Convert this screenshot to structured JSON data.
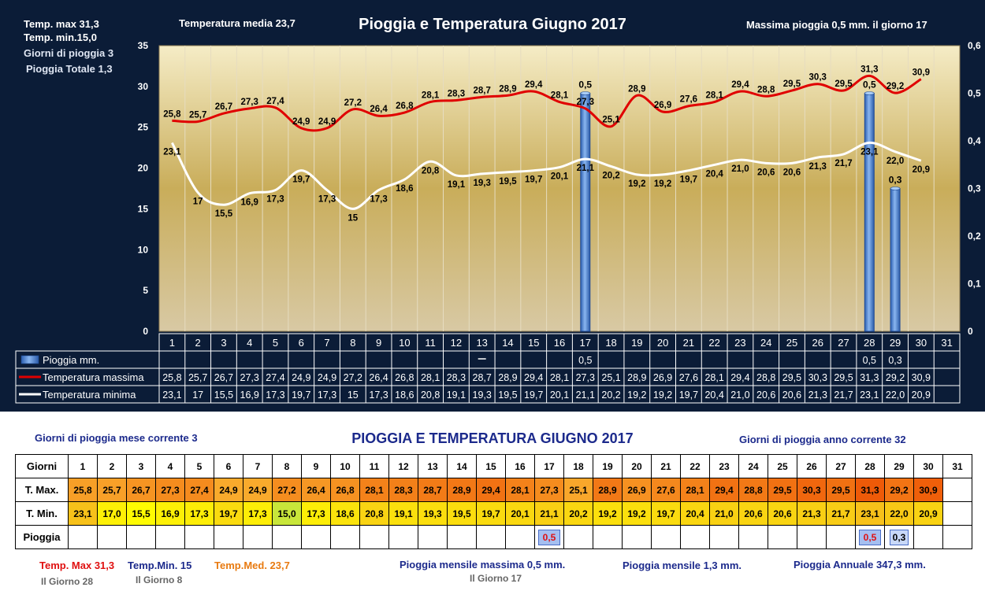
{
  "chart_data": {
    "type": "line",
    "title": "Pioggia e Temperatura Giugno 2017",
    "categories": [
      "1",
      "2",
      "3",
      "4",
      "5",
      "6",
      "7",
      "8",
      "9",
      "10",
      "11",
      "12",
      "13",
      "14",
      "15",
      "16",
      "17",
      "18",
      "19",
      "20",
      "21",
      "22",
      "23",
      "24",
      "25",
      "26",
      "27",
      "28",
      "29",
      "30",
      "31"
    ],
    "ylim": [
      0,
      35
    ],
    "yticks": [
      "0",
      "5",
      "10",
      "15",
      "20",
      "25",
      "30",
      "35"
    ],
    "y2lim": [
      0,
      0.6
    ],
    "y2ticks": [
      "0",
      "0,1",
      "0,2",
      "0,3",
      "0,4",
      "0,5",
      "0,6"
    ],
    "series": [
      {
        "name": "Pioggia mm.",
        "kind": "bar",
        "axis": "right",
        "color": "#4a86d4",
        "values": [
          null,
          null,
          null,
          null,
          null,
          null,
          null,
          null,
          null,
          null,
          null,
          null,
          null,
          null,
          null,
          null,
          0.5,
          null,
          null,
          null,
          null,
          null,
          null,
          null,
          null,
          null,
          null,
          0.5,
          0.3,
          null,
          null
        ],
        "labels": [
          "",
          "",
          "",
          "",
          "",
          "",
          "",
          "",
          "",
          "",
          "",
          "",
          "",
          "",
          "",
          "",
          "0,5",
          "",
          "",
          "",
          "",
          "",
          "",
          "",
          "",
          "",
          "",
          "0,5",
          "0,3",
          "",
          ""
        ]
      },
      {
        "name": "Temperatura massima",
        "kind": "line",
        "color": "#e00000",
        "values": [
          25.8,
          25.7,
          26.7,
          27.3,
          27.4,
          24.9,
          24.9,
          27.2,
          26.4,
          26.8,
          28.1,
          28.3,
          28.7,
          28.9,
          29.4,
          28.1,
          27.3,
          25.1,
          28.9,
          26.9,
          27.6,
          28.1,
          29.4,
          28.8,
          29.5,
          30.3,
          29.5,
          31.3,
          29.2,
          30.9,
          null
        ],
        "labels": [
          "25,8",
          "25,7",
          "26,7",
          "27,3",
          "27,4",
          "24,9",
          "24,9",
          "27,2",
          "26,4",
          "26,8",
          "28,1",
          "28,3",
          "28,7",
          "28,9",
          "29,4",
          "28,1",
          "27,3",
          "25,1",
          "28,9",
          "26,9",
          "27,6",
          "28,1",
          "29,4",
          "28,8",
          "29,5",
          "30,3",
          "29,5",
          "31,3",
          "29,2",
          "30,9",
          ""
        ]
      },
      {
        "name": "Temperatura minima",
        "kind": "line",
        "color": "#ffffff",
        "values": [
          23.1,
          17,
          15.5,
          16.9,
          17.3,
          19.7,
          17.3,
          15,
          17.3,
          18.6,
          20.8,
          19.1,
          19.3,
          19.5,
          19.7,
          20.1,
          21.1,
          20.2,
          19.2,
          19.2,
          19.7,
          20.4,
          21.0,
          20.6,
          20.6,
          21.3,
          21.7,
          23.1,
          22.0,
          20.9,
          null
        ],
        "labels": [
          "23,1",
          "17",
          "15,5",
          "16,9",
          "17,3",
          "19,7",
          "17,3",
          "15",
          "17,3",
          "18,6",
          "20,8",
          "19,1",
          "19,3",
          "19,5",
          "19,7",
          "20,1",
          "21,1",
          "20,2",
          "19,2",
          "19,2",
          "19,7",
          "20,4",
          "21,0",
          "20,6",
          "20,6",
          "21,3",
          "21,7",
          "23,1",
          "22,0",
          "20,9",
          ""
        ]
      }
    ]
  },
  "header": {
    "temp_max": "Temp. max  31,3",
    "temp_min": "Temp.  min.15,0",
    "rain_days": "Giorni di pioggia   3",
    "rain_total": "Pioggia Totale   1,3",
    "temp_media": "Temperatura media  23,7",
    "max_rain": "Massima pioggia  0,5    mm.  il giorno 17"
  },
  "table": {
    "title": "PIOGGIA E TEMPERATURA GIUGNO 2017",
    "rain_days_month": "Giorni di pioggia mese corrente   3",
    "rain_days_year": "Giorni di pioggia anno corrente  32",
    "row_labels": [
      "Giorni",
      "T. Max.",
      "T. Min.",
      "Pioggia"
    ],
    "days": [
      "1",
      "2",
      "3",
      "4",
      "5",
      "6",
      "7",
      "8",
      "9",
      "10",
      "11",
      "12",
      "13",
      "14",
      "15",
      "16",
      "17",
      "18",
      "19",
      "20",
      "21",
      "22",
      "23",
      "24",
      "25",
      "26",
      "27",
      "28",
      "29",
      "30",
      "31"
    ],
    "tmax": [
      "25,8",
      "25,7",
      "26,7",
      "27,3",
      "27,4",
      "24,9",
      "24,9",
      "27,2",
      "26,4",
      "26,8",
      "28,1",
      "28,3",
      "28,7",
      "28,9",
      "29,4",
      "28,1",
      "27,3",
      "25,1",
      "28,9",
      "26,9",
      "27,6",
      "28,1",
      "29,4",
      "28,8",
      "29,5",
      "30,3",
      "29,5",
      "31,3",
      "29,2",
      "30,9",
      ""
    ],
    "tmin": [
      "23,1",
      "17,0",
      "15,5",
      "16,9",
      "17,3",
      "19,7",
      "17,3",
      "15,0",
      "17,3",
      "18,6",
      "20,8",
      "19,1",
      "19,3",
      "19,5",
      "19,7",
      "20,1",
      "21,1",
      "20,2",
      "19,2",
      "19,2",
      "19,7",
      "20,4",
      "21,0",
      "20,6",
      "20,6",
      "21,3",
      "21,7",
      "23,1",
      "22,0",
      "20,9",
      ""
    ],
    "rain": [
      "",
      "",
      "",
      "",
      "",
      "",
      "",
      "",
      "",
      "",
      "",
      "",
      "",
      "",
      "",
      "",
      "0,5",
      "",
      "",
      "",
      "",
      "",
      "",
      "",
      "",
      "",
      "",
      "0,5",
      "0,3",
      "",
      ""
    ]
  },
  "footer": {
    "temp_max": "Temp. Max 31,3",
    "temp_max_day": "Il Giorno  28",
    "temp_min": "Temp.Min.  15",
    "temp_min_day": "Il Giorno  8",
    "temp_med": "Temp.Med. 23,7",
    "rain_month_max": "Pioggia mensile massima 0,5 mm.",
    "rain_month_max_day": "Il Giorno 17",
    "rain_month": "Pioggia mensile 1,3     mm.",
    "rain_year": "Pioggia Annuale  347,3 mm."
  },
  "colors": {
    "panel_bg": "#0b1c37",
    "plot_top": "#f5ecc6",
    "plot_mid": "#c9ad5a",
    "plot_bottom": "#d8c9a4",
    "tmax_hi": "#ee5a08",
    "tmax_lo": "#f9aa2c",
    "tmin_hi": "#f7c11a",
    "tmin_lo": "#ffff00"
  }
}
